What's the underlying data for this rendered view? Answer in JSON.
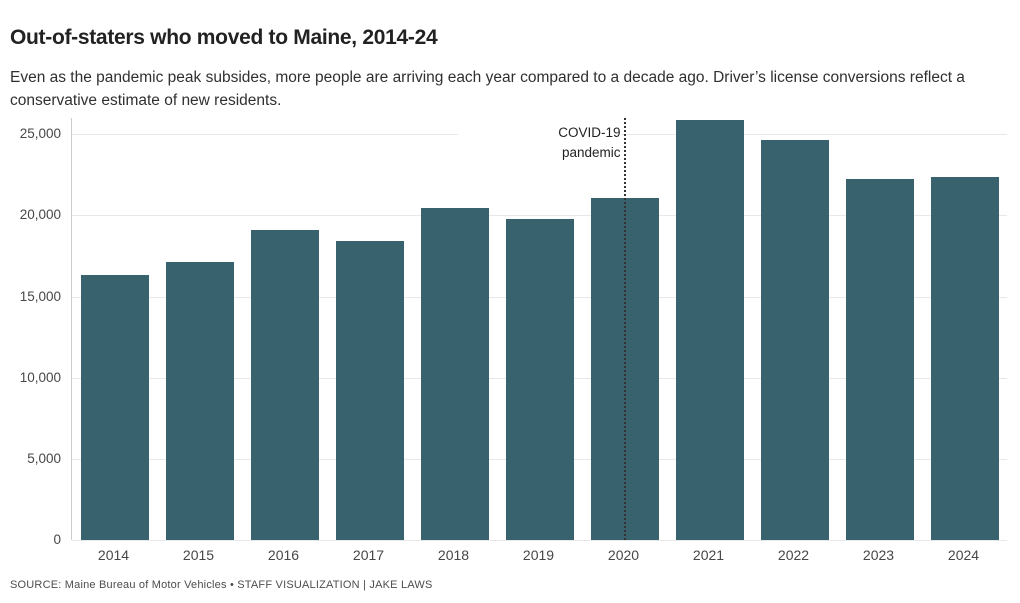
{
  "header": {
    "title": "Out-of-staters who moved to Maine, 2014-24",
    "subtitle": "Even as the pandemic peak subsides, more people are arriving each year compared to a decade ago. Driver’s license conversions reflect a conservative estimate of new residents."
  },
  "chart_data": {
    "type": "bar",
    "title": "Out-of-staters who moved to Maine, 2014-24",
    "subtitle": "Even as the pandemic peak subsides, more people are arriving each year compared to a decade ago. Driver’s license conversions reflect a conservative estimate of new residents.",
    "categories": [
      "2014",
      "2015",
      "2016",
      "2017",
      "2018",
      "2019",
      "2020",
      "2021",
      "2022",
      "2023",
      "2024"
    ],
    "values": [
      16300,
      17100,
      19100,
      18450,
      20450,
      19800,
      21100,
      25900,
      24650,
      22250,
      22350
    ],
    "xlabel": "",
    "ylabel": "",
    "ylim": [
      0,
      26000
    ],
    "yticks": [
      {
        "value": 0,
        "label": "0"
      },
      {
        "value": 5000,
        "label": "5,000"
      },
      {
        "value": 10000,
        "label": "10,000"
      },
      {
        "value": 15000,
        "label": "15,000"
      },
      {
        "value": 20000,
        "label": "20,000"
      },
      {
        "value": 25000,
        "label": "25,000"
      }
    ],
    "grid": "horizontal",
    "legend": "none",
    "bar_color": "#38626e",
    "annotation": {
      "lines": [
        "COVID-19",
        "pandemic"
      ],
      "category": "2020",
      "style": "dotted-vertical-line"
    }
  },
  "footer": {
    "source": "SOURCE: Maine Bureau of Motor Vehicles • STAFF VISUALIZATION | JAKE LAWS"
  }
}
